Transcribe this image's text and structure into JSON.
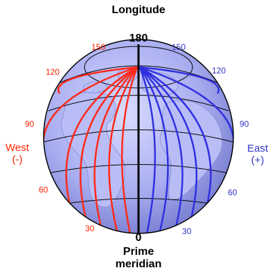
{
  "title": "Longitude",
  "top_label": "180",
  "bottom_label": "0",
  "prime_meridian": [
    "Prime",
    "meridian"
  ],
  "west": {
    "label": "West",
    "sign": "(-)",
    "color": "#ff2200"
  },
  "east": {
    "label": "East",
    "sign": "(+)",
    "color": "#3333cc"
  },
  "west_ticks": [
    "150",
    "120",
    "90",
    "60",
    "30"
  ],
  "east_ticks": [
    "150",
    "120",
    "90",
    "60",
    "30"
  ]
}
